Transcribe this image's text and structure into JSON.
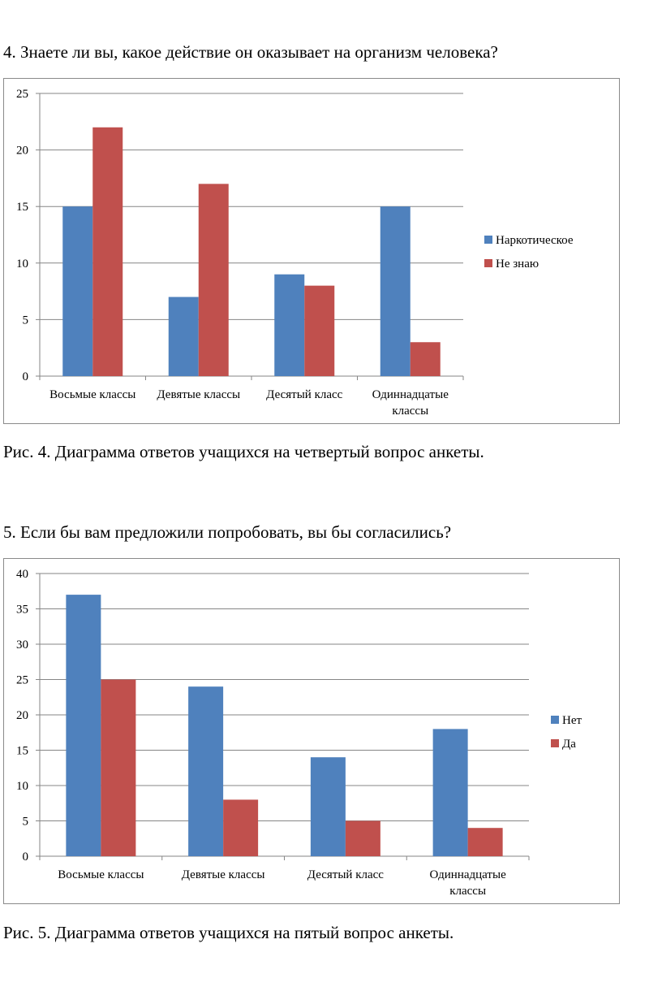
{
  "question4": {
    "text": "4. Знаете ли вы, какое действие он оказывает на организм человека?"
  },
  "caption4": {
    "text": "Рис. 4.  Диаграмма ответов учащихся на четвертый вопрос анкеты."
  },
  "question5": {
    "text": "5. Если бы вам предложили попробовать, вы бы согласились?"
  },
  "caption5": {
    "text": "Рис. 5. Диаграмма ответов учащихся на пятый вопрос анкеты."
  },
  "colors": {
    "blue": "#4f81bd",
    "red": "#c0504d",
    "grid": "#868686",
    "axis": "#868686"
  },
  "chart_data": [
    {
      "type": "bar",
      "title": "",
      "xlabel": "",
      "ylabel": "",
      "categories": [
        [
          "Восьмые классы"
        ],
        [
          "Девятые классы"
        ],
        [
          "Десятый класс"
        ],
        [
          "Одиннадцатые",
          "классы"
        ]
      ],
      "series": [
        {
          "name": "Наркотическое",
          "color": "#4f81bd",
          "values": [
            15,
            7,
            9,
            15
          ]
        },
        {
          "name": "Не знаю",
          "color": "#c0504d",
          "values": [
            22,
            17,
            8,
            3
          ]
        }
      ],
      "ylim": [
        0,
        25
      ],
      "yticks": [
        0,
        5,
        10,
        15,
        20,
        25
      ],
      "grid": true,
      "legend": "right"
    },
    {
      "type": "bar",
      "title": "",
      "xlabel": "",
      "ylabel": "",
      "categories": [
        [
          "Восьмые классы"
        ],
        [
          "Девятые классы"
        ],
        [
          "Десятый класс"
        ],
        [
          "Одиннадцатые",
          "классы"
        ]
      ],
      "series": [
        {
          "name": "Нет",
          "color": "#4f81bd",
          "values": [
            37,
            24,
            14,
            18
          ]
        },
        {
          "name": "Да",
          "color": "#c0504d",
          "values": [
            25,
            8,
            5,
            4
          ]
        }
      ],
      "ylim": [
        0,
        40
      ],
      "yticks": [
        0,
        5,
        10,
        15,
        20,
        25,
        30,
        35,
        40
      ],
      "grid": true,
      "legend": "right"
    }
  ]
}
